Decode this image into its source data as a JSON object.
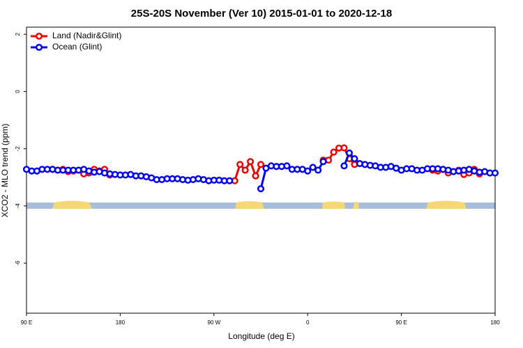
{
  "chart_data": {
    "type": "line",
    "title": "25S-20S November (Ver 10)   2015-01-01 to 2020-12-18",
    "x_label": "Longitude (deg E)",
    "y_label": "XCO2 - MLO trend (ppm)",
    "xlim": [
      90,
      540
    ],
    "xticks": [
      {
        "value": 90,
        "label": "90 E"
      },
      180,
      {
        "value": 270,
        "label": "90 W"
      },
      {
        "value": 360,
        "label": "0"
      },
      {
        "value": 450,
        "label": "90 E"
      },
      {
        "value": 540,
        "label": "180"
      }
    ],
    "ylim": [
      -7.75,
      2.25
    ],
    "yticks": [
      2,
      0,
      -2,
      -4,
      -6
    ],
    "legend": "upper left",
    "x": [
      90,
      95,
      100,
      105,
      110,
      115,
      120,
      125,
      130,
      135,
      140,
      145,
      150,
      155,
      160,
      165,
      170,
      175,
      180,
      185,
      190,
      195,
      200,
      205,
      210,
      215,
      220,
      225,
      230,
      235,
      240,
      245,
      250,
      255,
      260,
      265,
      270,
      275,
      280,
      285,
      290,
      295,
      300,
      305,
      310,
      315,
      320,
      325,
      330,
      335,
      340,
      345,
      350,
      355,
      360,
      365,
      370,
      375,
      380,
      385,
      390,
      395,
      400,
      405,
      410,
      415,
      420,
      425,
      430,
      435,
      440,
      445,
      450,
      455,
      460,
      465,
      470,
      475,
      480,
      485,
      490,
      495,
      500,
      505,
      510,
      515,
      520,
      525,
      530,
      535,
      540
    ],
    "series": [
      {
        "name": "Land (Nadir&Glint)",
        "color": "#ee0000",
        "values": [
          null,
          null,
          null,
          null,
          null,
          -2.72,
          -2.75,
          -2.72,
          -2.8,
          -2.78,
          -2.75,
          -2.88,
          -2.85,
          -2.72,
          -2.78,
          -2.72,
          -2.92,
          null,
          null,
          null,
          null,
          null,
          null,
          null,
          null,
          null,
          null,
          null,
          null,
          null,
          null,
          null,
          null,
          null,
          null,
          null,
          null,
          null,
          null,
          null,
          -3.12,
          -2.55,
          -2.75,
          -2.45,
          -2.95,
          -2.55,
          null,
          null,
          null,
          null,
          null,
          null,
          null,
          null,
          null,
          null,
          null,
          -2.4,
          -2.4,
          -2.12,
          -1.98,
          -1.97,
          -2.35,
          -2.55,
          null,
          null,
          null,
          null,
          null,
          null,
          null,
          null,
          null,
          null,
          null,
          null,
          null,
          null,
          -2.75,
          -2.78,
          -2.72,
          -2.85,
          -2.8,
          -2.75,
          -2.9,
          -2.85,
          -2.72,
          -2.88,
          null,
          null,
          null
        ]
      },
      {
        "name": "Ocean (Glint)",
        "color": "#0000ee",
        "values": [
          -2.72,
          -2.78,
          -2.78,
          -2.72,
          -2.72,
          -2.72,
          -2.75,
          -2.75,
          -2.75,
          -2.75,
          -2.75,
          -2.72,
          -2.78,
          -2.82,
          -2.8,
          -2.85,
          -2.88,
          -2.9,
          -2.92,
          -2.92,
          -2.9,
          -2.95,
          -2.95,
          -2.98,
          -3.02,
          -3.08,
          -3.08,
          -3.05,
          -3.05,
          -3.05,
          -3.08,
          -3.1,
          -3.08,
          -3.05,
          -3.08,
          -3.12,
          -3.1,
          -3.1,
          -3.12,
          -3.12,
          null,
          null,
          null,
          null,
          null,
          -3.4,
          -2.68,
          -2.6,
          -2.62,
          -2.62,
          -2.6,
          -2.72,
          -2.72,
          -2.72,
          -2.78,
          -2.65,
          -2.75,
          -2.45,
          null,
          null,
          null,
          -2.6,
          -2.15,
          -2.35,
          -2.52,
          -2.55,
          -2.58,
          -2.6,
          -2.65,
          -2.65,
          -2.62,
          -2.68,
          -2.75,
          -2.7,
          -2.7,
          -2.75,
          -2.75,
          -2.7,
          -2.7,
          -2.7,
          -2.72,
          -2.75,
          -2.8,
          -2.78,
          -2.75,
          -2.72,
          -2.78,
          -2.82,
          -2.8,
          -2.85,
          -2.85
        ]
      }
    ]
  }
}
